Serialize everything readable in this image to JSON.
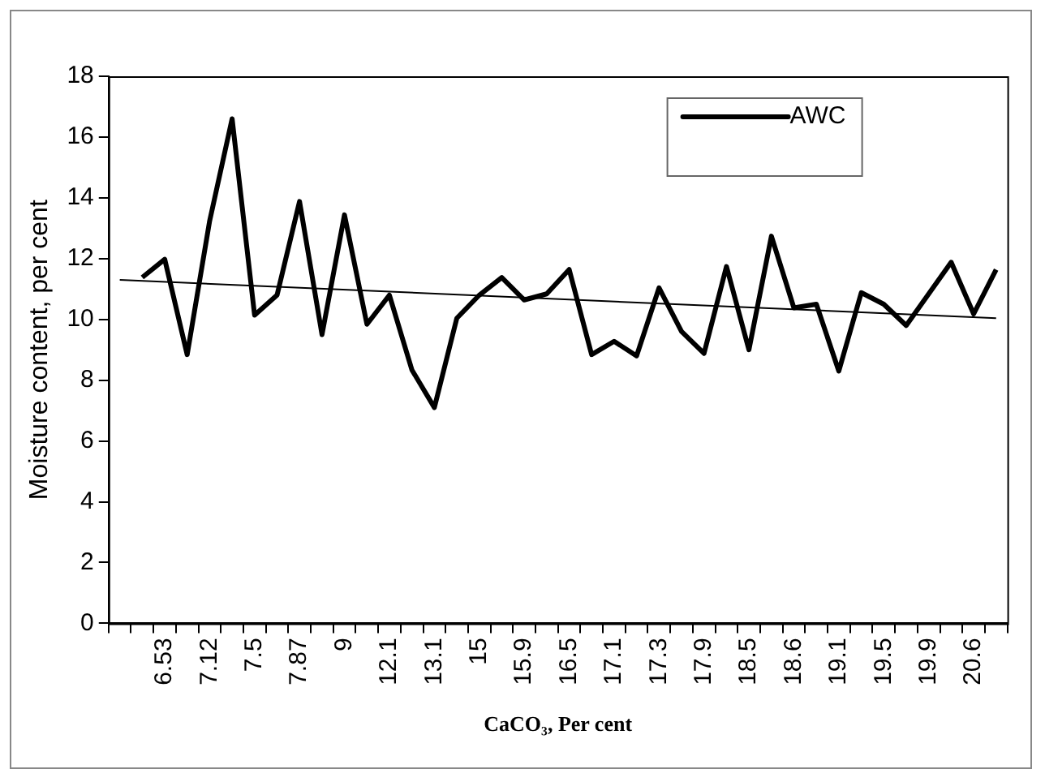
{
  "chart_data": {
    "type": "line",
    "xlabel": "CaCO₃, Per cent",
    "ylabel": "Moisture content, per cent",
    "categories": [
      null,
      null,
      "6.53",
      null,
      "7.12",
      null,
      "7.5",
      null,
      "7.87",
      null,
      "9",
      null,
      "12.1",
      null,
      "13.1",
      null,
      "15",
      null,
      "15.9",
      null,
      "16.5",
      null,
      "17.1",
      null,
      "17.3",
      null,
      "17.9",
      null,
      "18.5",
      null,
      "18.6",
      null,
      "19.1",
      null,
      "19.5",
      null,
      "19.9",
      null,
      "20.6",
      null
    ],
    "series": [
      {
        "name": "AWC",
        "color": "#000000",
        "values": [
          null,
          11.38,
          11.98,
          8.84,
          13.24,
          16.6,
          10.14,
          10.8,
          13.88,
          9.5,
          13.44,
          9.84,
          10.8,
          8.34,
          7.1,
          10.04,
          10.8,
          11.38,
          10.64,
          10.84,
          11.64,
          8.84,
          9.28,
          8.8,
          11.04,
          9.6,
          8.88,
          11.74,
          9.0,
          12.74,
          10.38,
          10.5,
          8.3,
          10.88,
          10.5,
          9.8,
          10.84,
          11.88,
          10.18,
          11.64
        ]
      },
      {
        "type": "line",
        "color": "#000000",
        "values": [
          11.3,
          null,
          null,
          null,
          null,
          null,
          null,
          null,
          null,
          null,
          null,
          null,
          null,
          null,
          null,
          null,
          null,
          null,
          null,
          null,
          null,
          null,
          null,
          null,
          null,
          null,
          null,
          null,
          null,
          null,
          null,
          null,
          null,
          null,
          null,
          null,
          null,
          null,
          null,
          10.04
        ]
      }
    ],
    "ylim": [
      0,
      18
    ],
    "yticks": [
      0,
      2,
      4,
      6,
      8,
      10,
      12,
      14,
      16,
      18
    ],
    "grid": false,
    "legend": "top right",
    "marker": "none",
    "line_style": "solid"
  }
}
